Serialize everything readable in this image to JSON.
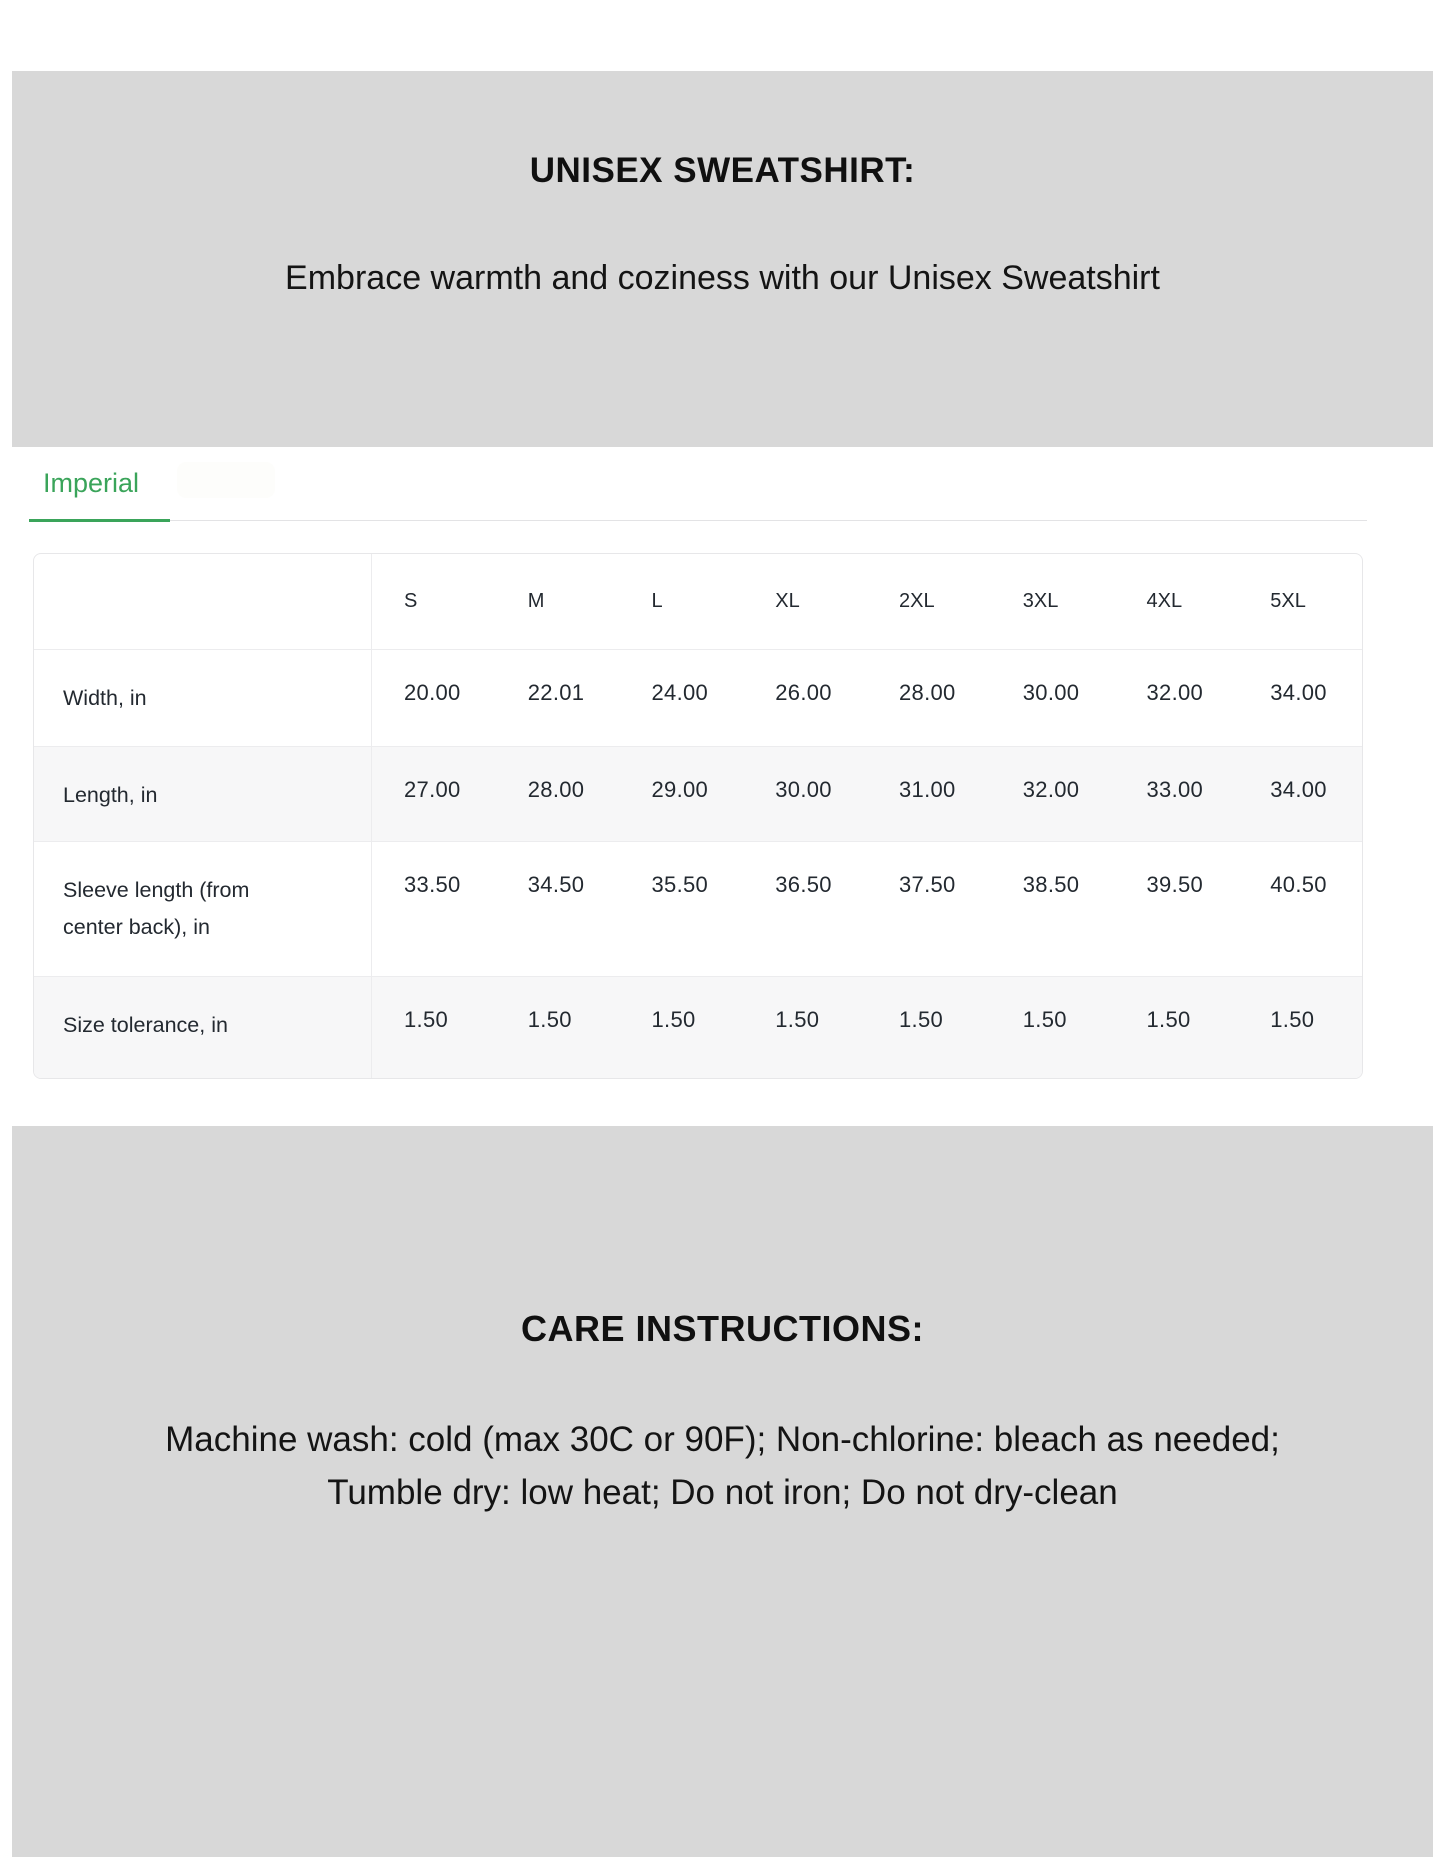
{
  "header": {
    "title": "UNISEX SWEATSHIRT:",
    "subtitle": "Embrace warmth and coziness with our Unisex Sweatshirt"
  },
  "tabs": {
    "active_label": "Imperial"
  },
  "size_table": {
    "columns": [
      "S",
      "M",
      "L",
      "XL",
      "2XL",
      "3XL",
      "4XL",
      "5XL"
    ],
    "rows": [
      {
        "label": "Width, in",
        "values": [
          "20.00",
          "22.01",
          "24.00",
          "26.00",
          "28.00",
          "30.00",
          "32.00",
          "34.00"
        ]
      },
      {
        "label": "Length, in",
        "values": [
          "27.00",
          "28.00",
          "29.00",
          "30.00",
          "31.00",
          "32.00",
          "33.00",
          "34.00"
        ]
      },
      {
        "label": "Sleeve length (from center back), in",
        "values": [
          "33.50",
          "34.50",
          "35.50",
          "36.50",
          "37.50",
          "38.50",
          "39.50",
          "40.50"
        ]
      },
      {
        "label": "Size tolerance, in",
        "values": [
          "1.50",
          "1.50",
          "1.50",
          "1.50",
          "1.50",
          "1.50",
          "1.50",
          "1.50"
        ]
      }
    ]
  },
  "care": {
    "title": "CARE INSTRUCTIONS:",
    "body": "Machine wash: cold (max 30C or 90F); Non-chlorine: bleach as needed; Tumble dry: low heat; Do not iron; Do not dry-clean"
  },
  "colors": {
    "block_bg": "#d8d8d8",
    "accent_green": "#3aa45a",
    "table_border": "#e7e7e9",
    "row_stripe": "#f7f7f8",
    "table_text": "#232930"
  }
}
